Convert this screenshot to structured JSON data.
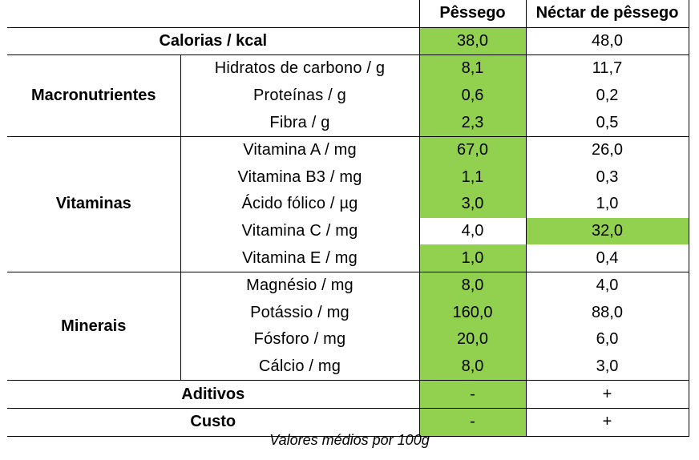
{
  "header": {
    "col1": "Pêssego",
    "col2": "Néctar de pêssego"
  },
  "calorias": {
    "label": "Calorias / kcal",
    "v1": "38,0",
    "v2": "48,0"
  },
  "macro": {
    "group": "Macronutrientes",
    "rows": [
      {
        "label": "Hidratos de carbono / g",
        "v1": "8,1",
        "v2": "11,7"
      },
      {
        "label": "Proteínas / g",
        "v1": "0,6",
        "v2": "0,2"
      },
      {
        "label": "Fibra / g",
        "v1": "2,3",
        "v2": "0,5"
      }
    ]
  },
  "vitaminas": {
    "group": "Vitaminas",
    "rows": [
      {
        "label": "Vitamina A / mg",
        "v1": "67,0",
        "v2": "26,0"
      },
      {
        "label": "Vitamina B3 / mg",
        "v1": "1,1",
        "v2": "0,3"
      },
      {
        "label": "Ácido fólico / µg",
        "v1": "3,0",
        "v2": "1,0"
      },
      {
        "label": "Vitamina C / mg",
        "v1": "4,0",
        "v2": "32,0"
      },
      {
        "label": "Vitamina E / mg",
        "v1": "1,0",
        "v2": "0,4"
      }
    ]
  },
  "minerais": {
    "group": "Minerais",
    "rows": [
      {
        "label": "Magnésio / mg",
        "v1": "8,0",
        "v2": "4,0"
      },
      {
        "label": "Potássio / mg",
        "v1": "160,0",
        "v2": "88,0"
      },
      {
        "label": "Fósforo / mg",
        "v1": "20,0",
        "v2": "6,0"
      },
      {
        "label": "Cálcio / mg",
        "v1": "8,0",
        "v2": "3,0"
      }
    ]
  },
  "aditivos": {
    "label": "Aditivos",
    "v1": "-",
    "v2": "+"
  },
  "custo": {
    "label": "Custo",
    "v1": "-",
    "v2": "+"
  },
  "footnote": "Valores médios por 100g",
  "colors": {
    "highlight": "#92d050",
    "border": "#000000"
  }
}
